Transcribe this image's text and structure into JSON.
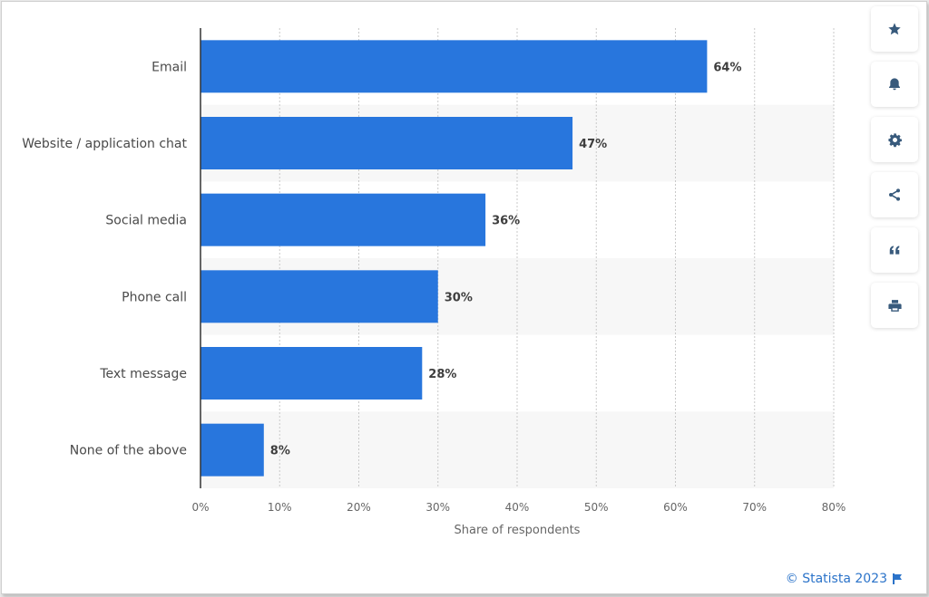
{
  "chart_data": {
    "type": "bar",
    "orientation": "horizontal",
    "categories": [
      "Email",
      "Website / application chat",
      "Social media",
      "Phone call",
      "Text message",
      "None of the above"
    ],
    "values": [
      64,
      47,
      36,
      30,
      28,
      8
    ],
    "value_labels": [
      "64%",
      "47%",
      "36%",
      "30%",
      "28%",
      "8%"
    ],
    "xlabel": "Share of respondents",
    "ylabel": "",
    "xlim": [
      0,
      80
    ],
    "ticks": [
      0,
      10,
      20,
      30,
      40,
      50,
      60,
      70,
      80
    ],
    "tick_labels": [
      "0%",
      "10%",
      "20%",
      "30%",
      "40%",
      "50%",
      "60%",
      "70%",
      "80%"
    ],
    "grid": true,
    "bar_color": "#2876dd",
    "stripe_color": "#f7f7f7"
  },
  "toolbar": {
    "buttons": [
      {
        "icon": "star-icon",
        "name": "favorite-button"
      },
      {
        "icon": "bell-icon",
        "name": "notification-button"
      },
      {
        "icon": "gear-icon",
        "name": "settings-button"
      },
      {
        "icon": "share-icon",
        "name": "share-button"
      },
      {
        "icon": "quote-icon",
        "name": "cite-button"
      },
      {
        "icon": "print-icon",
        "name": "print-button"
      }
    ],
    "icon_color": "#385a7c"
  },
  "footer": {
    "credit": "© Statista 2023",
    "flag_icon": "flag-icon"
  }
}
